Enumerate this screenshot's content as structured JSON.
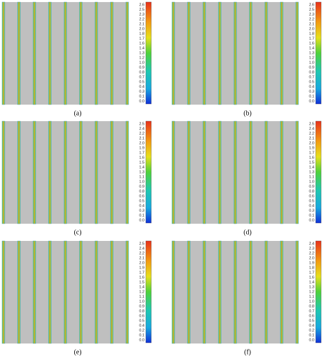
{
  "panels": [
    {
      "label": "(a)",
      "colorbar_ticks": [
        "2.6",
        "2.5",
        "2.3",
        "2.2",
        "2.1",
        "2.0",
        "1.8",
        "1.7",
        "1.6",
        "1.4",
        "1.3",
        "1.2",
        "1.0",
        "0.9",
        "0.8",
        "0.7",
        "0.5",
        "0.4",
        "0.3",
        "0.1",
        "0.0"
      ]
    },
    {
      "label": "(b)",
      "colorbar_ticks": [
        "2.6",
        "2.5",
        "2.3",
        "2.2",
        "2.1",
        "2.0",
        "1.8",
        "1.7",
        "1.6",
        "1.4",
        "1.3",
        "1.2",
        "1.0",
        "0.9",
        "0.8",
        "0.7",
        "0.5",
        "0.4",
        "0.3",
        "0.1",
        "0.0"
      ]
    },
    {
      "label": "(c)",
      "colorbar_ticks": [
        "2.5",
        "2.4",
        "2.2",
        "2.1",
        "2.0",
        "1.9",
        "1.7",
        "1.6",
        "1.5",
        "1.4",
        "1.3",
        "1.1",
        "1.0",
        "0.9",
        "0.8",
        "0.6",
        "0.5",
        "0.4",
        "0.3",
        "0.1",
        "0.0"
      ]
    },
    {
      "label": "(d)",
      "colorbar_ticks": [
        "2.5",
        "2.4",
        "2.2",
        "2.1",
        "2.0",
        "1.9",
        "1.7",
        "1.6",
        "1.5",
        "1.4",
        "1.3",
        "1.1",
        "1.0",
        "0.9",
        "0.8",
        "0.6",
        "0.5",
        "0.4",
        "0.3",
        "0.1",
        "0.0"
      ]
    },
    {
      "label": "(e)",
      "colorbar_ticks": [
        "2.5",
        "2.4",
        "2.2",
        "2.1",
        "2.0",
        "1.9",
        "1.7",
        "1.6",
        "1.5",
        "1.4",
        "1.2",
        "1.1",
        "1.0",
        "0.9",
        "0.8",
        "0.6",
        "0.5",
        "0.4",
        "0.2",
        "0.1",
        "0.0"
      ]
    },
    {
      "label": "(f)",
      "colorbar_ticks": [
        "2.4",
        "2.3",
        "2.2",
        "2.0",
        "1.9",
        "1.8",
        "1.7",
        "1.6",
        "1.4",
        "1.3",
        "1.2",
        "1.1",
        "1.0",
        "0.8",
        "0.7",
        "0.6",
        "0.5",
        "0.4",
        "0.2",
        "0.1",
        "0.0"
      ]
    }
  ]
}
